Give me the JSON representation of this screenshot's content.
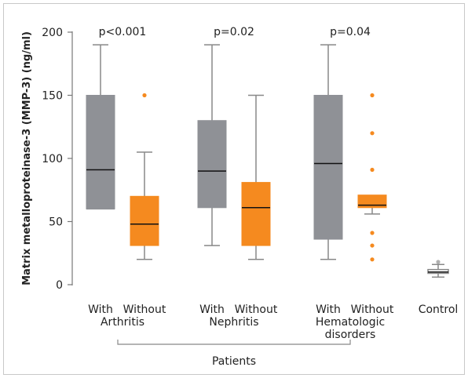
{
  "chart_data": {
    "type": "box",
    "ylabel": "Matrix metalloproteinase-3 (MMP-3) (ng/ml)",
    "ylim": [
      0,
      200
    ],
    "yticks": [
      0,
      50,
      100,
      150,
      200
    ],
    "group_label": "Patients",
    "colors": {
      "with": "#8f9196",
      "without": "#f58a1f",
      "control": "#9a9a9a"
    },
    "groups": [
      {
        "pvalue": "p<0.001",
        "lines": [
          "Arthritis"
        ]
      },
      {
        "pvalue": "p=0.02",
        "lines": [
          "Nephritis"
        ]
      },
      {
        "pvalue": "p=0.04",
        "lines": [
          "Hematologic",
          "disorders"
        ]
      }
    ],
    "boxes": [
      {
        "label": "With",
        "color": "with",
        "whisker_low": 60,
        "q1": 60,
        "median": 91,
        "q3": 150,
        "whisker_high": 190,
        "outliers": []
      },
      {
        "label": "Without",
        "color": "without",
        "whisker_low": 20,
        "q1": 31,
        "median": 48,
        "q3": 70,
        "whisker_high": 105,
        "outliers": [
          150
        ]
      },
      {
        "label": "With",
        "color": "with",
        "whisker_low": 31,
        "q1": 61,
        "median": 90,
        "q3": 130,
        "whisker_high": 190,
        "outliers": []
      },
      {
        "label": "Without",
        "color": "without",
        "whisker_low": 20,
        "q1": 31,
        "median": 61,
        "q3": 81,
        "whisker_high": 150,
        "outliers": []
      },
      {
        "label": "With",
        "color": "with",
        "whisker_low": 20,
        "q1": 36,
        "median": 96,
        "q3": 150,
        "whisker_high": 190,
        "outliers": []
      },
      {
        "label": "Without",
        "color": "without",
        "whisker_low": 56,
        "q1": 61,
        "median": 63,
        "q3": 71,
        "whisker_high": 71,
        "outliers": [
          150,
          120,
          91,
          41,
          31,
          20
        ]
      },
      {
        "label": "Control",
        "color": "control",
        "whisker_low": 6,
        "q1": 9,
        "median": 10,
        "q3": 12,
        "whisker_high": 16,
        "outliers": [
          18
        ]
      }
    ]
  }
}
